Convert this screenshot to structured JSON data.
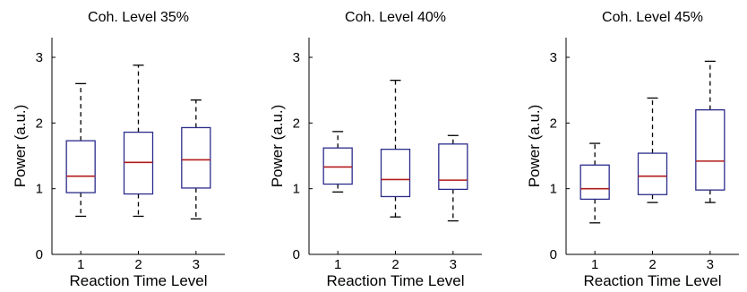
{
  "chart_data": [
    {
      "type": "box",
      "title": "Coh. Level 35%",
      "xlabel": "Reaction Time Level",
      "ylabel": "Power (a.u.)",
      "categories": [
        "1",
        "2",
        "3"
      ],
      "ylim": [
        0,
        3.3
      ],
      "yticks": [
        "0",
        "1",
        "2",
        "3"
      ],
      "grid": false,
      "colors": {
        "box": "#2b2b8c",
        "median": "#b31b1b",
        "whisker": "#000000"
      },
      "boxes": [
        {
          "whisker_low": 0.58,
          "q1": 0.94,
          "median": 1.19,
          "q3": 1.73,
          "whisker_high": 2.6
        },
        {
          "whisker_low": 0.58,
          "q1": 0.92,
          "median": 1.4,
          "q3": 1.86,
          "whisker_high": 2.88
        },
        {
          "whisker_low": 0.54,
          "q1": 1.01,
          "median": 1.44,
          "q3": 1.93,
          "whisker_high": 2.35
        }
      ]
    },
    {
      "type": "box",
      "title": "Coh. Level 40%",
      "xlabel": "Reaction Time Level",
      "ylabel": "Power (a.u.)",
      "categories": [
        "1",
        "2",
        "3"
      ],
      "ylim": [
        0,
        3.3
      ],
      "yticks": [
        "0",
        "1",
        "2",
        "3"
      ],
      "grid": false,
      "colors": {
        "box": "#2b2b8c",
        "median": "#b31b1b",
        "whisker": "#000000"
      },
      "boxes": [
        {
          "whisker_low": 0.95,
          "q1": 1.07,
          "median": 1.33,
          "q3": 1.62,
          "whisker_high": 1.87
        },
        {
          "whisker_low": 0.57,
          "q1": 0.88,
          "median": 1.14,
          "q3": 1.6,
          "whisker_high": 2.65
        },
        {
          "whisker_low": 0.51,
          "q1": 0.99,
          "median": 1.13,
          "q3": 1.68,
          "whisker_high": 1.81
        }
      ]
    },
    {
      "type": "box",
      "title": "Coh. Level 45%",
      "xlabel": "Reaction Time Level",
      "ylabel": "Power (a.u.)",
      "categories": [
        "1",
        "2",
        "3"
      ],
      "ylim": [
        0,
        3.3
      ],
      "yticks": [
        "0",
        "1",
        "2",
        "3"
      ],
      "grid": false,
      "colors": {
        "box": "#2b2b8c",
        "median": "#b31b1b",
        "whisker": "#000000"
      },
      "boxes": [
        {
          "whisker_low": 0.48,
          "q1": 0.84,
          "median": 1.0,
          "q3": 1.36,
          "whisker_high": 1.69
        },
        {
          "whisker_low": 0.79,
          "q1": 0.91,
          "median": 1.19,
          "q3": 1.54,
          "whisker_high": 2.38
        },
        {
          "whisker_low": 0.79,
          "q1": 0.98,
          "median": 1.42,
          "q3": 2.2,
          "whisker_high": 2.94
        }
      ]
    }
  ]
}
